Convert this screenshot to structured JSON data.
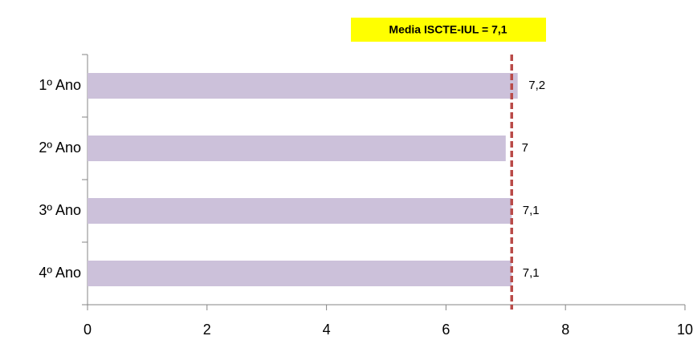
{
  "chart_data": {
    "type": "hbar",
    "categories": [
      "1º Ano",
      "2º Ano",
      "3º Ano",
      "4º Ano"
    ],
    "values": [
      7.2,
      7,
      7.1,
      7.1
    ],
    "value_labels": [
      "7,2",
      "7",
      "7,1",
      "7,1"
    ],
    "color": "#ccc1da",
    "xlim": [
      0,
      10
    ],
    "xticks": [
      0,
      2,
      4,
      6,
      8,
      10
    ],
    "reference_line": {
      "value": 7.1,
      "label": "Media ISCTE-IUL = 7,1",
      "color": "#b94a48",
      "box_color": "#ffff00"
    }
  }
}
